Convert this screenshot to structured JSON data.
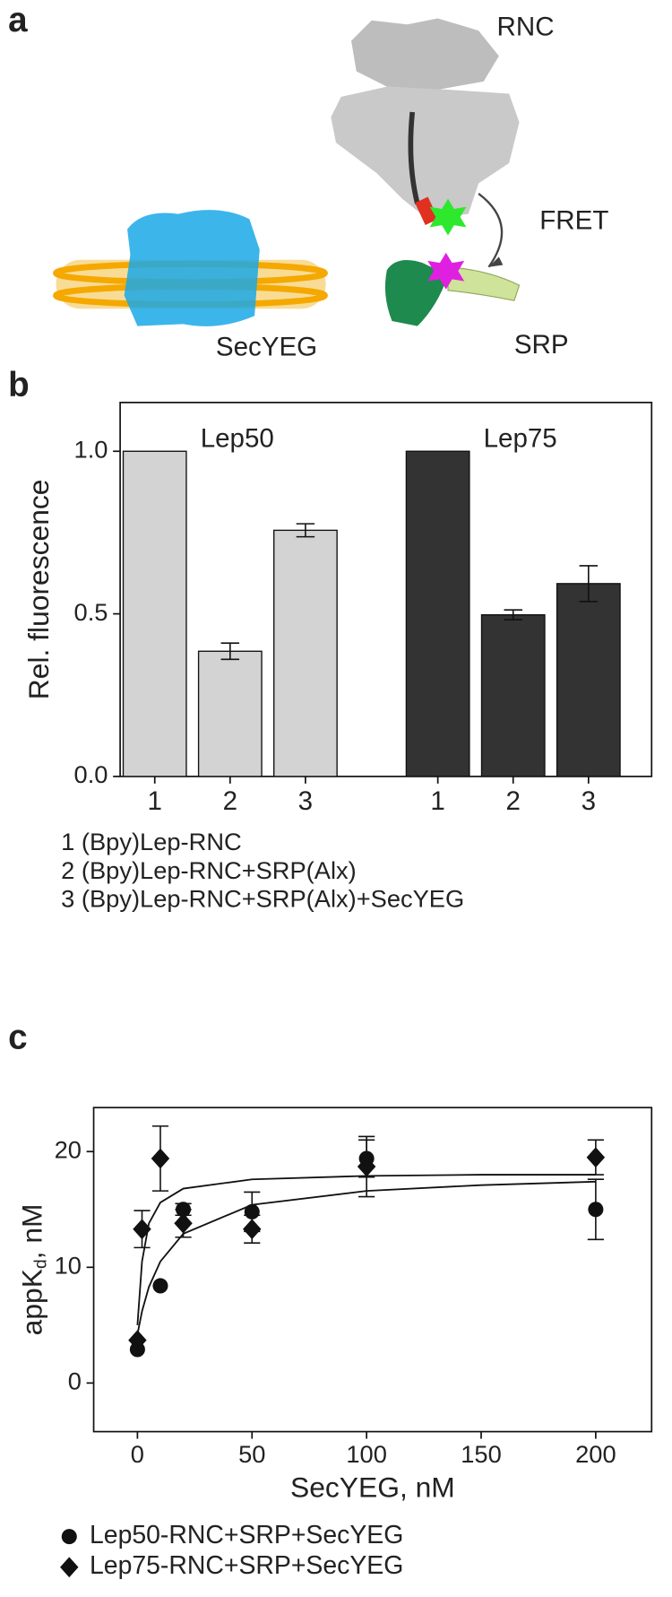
{
  "panel_labels": [
    "a",
    "b",
    "c"
  ],
  "diagram": {
    "ribosome_label": "RNC",
    "fret_label": "FRET",
    "srp_label": "SRP",
    "translocon_label": "SecYEG"
  },
  "chart_data": [
    {
      "type": "bar",
      "y_label": "Rel. fluorescence",
      "categories": [
        "1",
        "2",
        "3"
      ],
      "series": [
        {
          "name": "Lep50",
          "color": "#d3d3d3",
          "values": [
            1.0,
            0.385,
            0.757
          ],
          "errors": [
            null,
            0.025,
            0.02
          ]
        },
        {
          "name": "Lep75",
          "color": "#333333",
          "values": [
            1.0,
            0.497,
            0.593
          ],
          "errors": [
            null,
            0.015,
            0.055
          ]
        }
      ],
      "ylim": [
        0,
        1.15
      ],
      "yticks": [
        {
          "value": 0,
          "label": "0.0"
        },
        {
          "value": 0.5,
          "label": "0.5"
        },
        {
          "value": 1,
          "label": "1.0"
        }
      ],
      "notes": [
        "1 (Bpy)Lep-RNC",
        "2 (Bpy)Lep-RNC+SRP(Alx)",
        "3 (Bpy)Lep-RNC+SRP(Alx)+SecYEG"
      ]
    },
    {
      "type": "scatter",
      "x_label": "SecYEG, nM",
      "y_label_parts": [
        "appK",
        "d",
        ", nM"
      ],
      "series": [
        {
          "name": "Lep50-RNC+SRP+SecYEG",
          "marker": "circle",
          "color": "#111111",
          "x": [
            0,
            10,
            20,
            50,
            100,
            200
          ],
          "values": [
            2.9,
            8.4,
            15.0,
            14.8,
            19.4,
            15.0
          ],
          "errors": [
            null,
            null,
            0.5,
            1.7,
            1.6,
            2.6
          ]
        },
        {
          "name": "Lep75-RNC+SRP+SecYEG",
          "marker": "diamond",
          "color": "#111111",
          "x": [
            0,
            2,
            10,
            20,
            50,
            100,
            200
          ],
          "values": [
            3.7,
            13.3,
            19.4,
            13.8,
            13.3,
            18.7,
            19.5
          ],
          "errors": [
            null,
            1.6,
            2.8,
            1.2,
            1.2,
            2.6,
            1.5
          ]
        }
      ],
      "fits": [
        {
          "color": "#111111",
          "x": [
            0,
            2,
            5,
            10,
            20,
            50,
            100,
            150,
            200
          ],
          "values": [
            5.0,
            10.5,
            13.8,
            15.6,
            16.8,
            17.6,
            17.9,
            18.0,
            18.0
          ]
        },
        {
          "color": "#111111",
          "x": [
            0,
            2,
            5,
            10,
            20,
            50,
            100,
            150,
            200
          ],
          "values": [
            4.2,
            6.2,
            8.3,
            10.5,
            12.9,
            15.4,
            16.6,
            17.1,
            17.4
          ]
        }
      ],
      "xlim": [
        -19.1,
        224.4
      ],
      "ylim": [
        -4.2,
        23.8
      ],
      "xticks": [
        0,
        50,
        100,
        150,
        200
      ],
      "yticks": [
        0,
        10,
        20
      ]
    }
  ]
}
